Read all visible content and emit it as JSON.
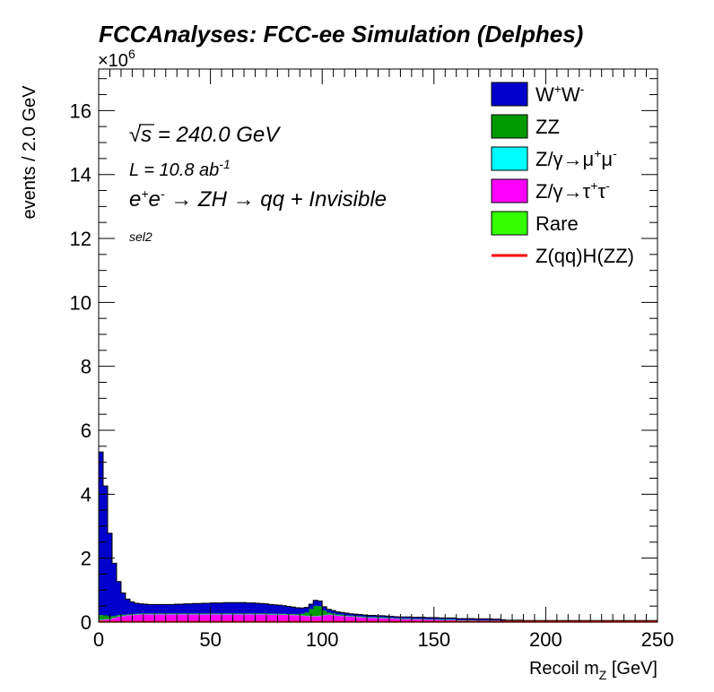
{
  "chart_data": {
    "type": "area",
    "stacked": true,
    "histogram": true,
    "title": "FCCAnalyses: FCC-ee Simulation (Delphes)",
    "xlabel_main": "Recoil m",
    "xlabel_sub": "Z",
    "xlabel_unit": " [GeV]",
    "ylabel": "events / 2.0 GeV",
    "y_multiplier": "×10",
    "y_multiplier_exp": "6",
    "xlim": [
      0,
      250
    ],
    "ylim": [
      0,
      17.3
    ],
    "x_ticks": [
      "0",
      "50",
      "100",
      "150",
      "200",
      "250"
    ],
    "y_ticks": [
      "0",
      "2",
      "4",
      "6",
      "8",
      "10",
      "12",
      "14",
      "16"
    ],
    "grid": false,
    "legend_position": "top-right",
    "annotations": {
      "sqrt_s_pre": "√",
      "sqrt_s_var": "s",
      "sqrt_s_post": " = 240.0 GeV",
      "lumi_pre": "L = 10.8 ab",
      "lumi_exp": "-1",
      "process_e1": "e",
      "process_e1_sup": "+",
      "process_e2": "e",
      "process_e2_sup": "-",
      "process_rest": " → ZH → qq + Invisible",
      "selection": "sel2"
    },
    "series": [
      {
        "name": "Rare",
        "color": "#33ff00",
        "values": [
          0.04,
          0.04,
          0.03,
          0.03,
          0.03,
          0.03,
          0.03,
          0.03,
          0.03,
          0.03,
          0.03,
          0.03,
          0.03,
          0.03,
          0.03,
          0.03,
          0.03,
          0.03,
          0.03,
          0.03,
          0.03,
          0.03,
          0.03,
          0.03,
          0.03,
          0.03,
          0.03,
          0.03,
          0.03,
          0.03,
          0.03,
          0.03,
          0.03,
          0.03,
          0.03,
          0.03,
          0.03,
          0.03,
          0.03,
          0.03,
          0.03,
          0.03,
          0.03,
          0.03,
          0.03,
          0.03,
          0.03,
          0.03,
          0.03,
          0.03,
          0.03,
          0.03,
          0.03,
          0.03,
          0.03,
          0.03,
          0.03,
          0.03,
          0.03,
          0.03,
          0.03,
          0.03,
          0.03,
          0.03,
          0.03,
          0.03,
          0.02,
          0.02,
          0.02,
          0.02,
          0.02,
          0.02,
          0.02,
          0.02,
          0.02,
          0.02,
          0.02,
          0.02,
          0.02,
          0.02,
          0.01,
          0.01,
          0.01,
          0.01,
          0.01,
          0.01,
          0.01,
          0.01,
          0.01,
          0.01,
          0.01,
          0.01,
          0.01,
          0.01,
          0.01,
          0.01,
          0.01,
          0.01,
          0.01,
          0.01,
          0.01,
          0.01,
          0.01,
          0.01,
          0.01,
          0.01,
          0.01,
          0.01,
          0.01,
          0.01,
          0.01,
          0.01,
          0.01,
          0.01,
          0.01,
          0.01,
          0.01,
          0.01,
          0.01,
          0.01,
          0.01,
          0.01,
          0.01,
          0.01,
          0.01
        ]
      },
      {
        "name": "Z/γ→τ⁺τ⁻",
        "color": "#ff00ff",
        "values": [
          0.02,
          0.04,
          0.06,
          0.1,
          0.14,
          0.16,
          0.18,
          0.19,
          0.2,
          0.21,
          0.21,
          0.21,
          0.21,
          0.21,
          0.21,
          0.21,
          0.21,
          0.21,
          0.21,
          0.21,
          0.21,
          0.21,
          0.21,
          0.21,
          0.21,
          0.21,
          0.21,
          0.21,
          0.21,
          0.21,
          0.21,
          0.21,
          0.21,
          0.21,
          0.21,
          0.21,
          0.21,
          0.21,
          0.2,
          0.2,
          0.2,
          0.2,
          0.19,
          0.19,
          0.18,
          0.17,
          0.16,
          0.15,
          0.15,
          0.16,
          0.18,
          0.2,
          0.19,
          0.17,
          0.16,
          0.15,
          0.14,
          0.13,
          0.12,
          0.11,
          0.1,
          0.1,
          0.09,
          0.09,
          0.08,
          0.08,
          0.08,
          0.07,
          0.07,
          0.07,
          0.06,
          0.06,
          0.06,
          0.05,
          0.05,
          0.05,
          0.04,
          0.04,
          0.04,
          0.04,
          0.03,
          0.03,
          0.03,
          0.03,
          0.02,
          0.02,
          0.02,
          0.02,
          0.02,
          0.02,
          0.01,
          0.01,
          0.01,
          0.01,
          0.01,
          0.01,
          0.01,
          0.01,
          0.01,
          0.01,
          0.01,
          0.01,
          0.01,
          0.01,
          0.01,
          0.01,
          0.01,
          0.01,
          0.01,
          0.01,
          0.01,
          0.01,
          0.01,
          0.01,
          0.01,
          0.01,
          0.01,
          0.01,
          0.01,
          0.01,
          0.01,
          0.01,
          0.01,
          0.01,
          0.01
        ]
      },
      {
        "name": "Z/γ→μ⁺μ⁻",
        "color": "#00ffff",
        "values": [
          0.01,
          0.01,
          0.01,
          0.01,
          0.01,
          0.01,
          0.01,
          0.01,
          0.01,
          0.01,
          0.01,
          0.01,
          0.01,
          0.01,
          0.01,
          0.01,
          0.01,
          0.01,
          0.01,
          0.01,
          0.01,
          0.01,
          0.01,
          0.01,
          0.01,
          0.01,
          0.01,
          0.01,
          0.01,
          0.01,
          0.01,
          0.01,
          0.01,
          0.01,
          0.01,
          0.01,
          0.01,
          0.01,
          0.01,
          0.01,
          0.01,
          0.01,
          0.01,
          0.01,
          0.01,
          0.01,
          0.01,
          0.01,
          0.01,
          0.01,
          0.01,
          0.01,
          0.01,
          0.01,
          0.01,
          0.01,
          0.01,
          0.01,
          0.01,
          0.01,
          0.01,
          0.01,
          0.01,
          0.01,
          0.01,
          0.01,
          0.01,
          0.01,
          0.01,
          0.01,
          0.01,
          0.01,
          0.01,
          0.01,
          0.01,
          0.01,
          0.01,
          0.01,
          0.01,
          0.01,
          0.01,
          0.01,
          0.01,
          0.01,
          0.01,
          0.01,
          0.01,
          0.01,
          0.01,
          0.01,
          0.01,
          0.01,
          0.01,
          0.01,
          0.01,
          0.01,
          0.01,
          0.01,
          0.01,
          0.01,
          0.01,
          0.01,
          0.01,
          0.01,
          0.01,
          0.01,
          0.01,
          0.01,
          0.01,
          0.01,
          0.01,
          0.01,
          0.01,
          0.01,
          0.01,
          0.01,
          0.01,
          0.01,
          0.01,
          0.01,
          0.01,
          0.01,
          0.01,
          0.01,
          0.01
        ]
      },
      {
        "name": "ZZ",
        "color": "#009900",
        "values": [
          0.15,
          0.12,
          0.08,
          0.05,
          0.04,
          0.03,
          0.02,
          0.02,
          0.02,
          0.02,
          0.02,
          0.02,
          0.02,
          0.02,
          0.02,
          0.02,
          0.02,
          0.02,
          0.02,
          0.02,
          0.02,
          0.02,
          0.02,
          0.02,
          0.02,
          0.02,
          0.02,
          0.02,
          0.02,
          0.02,
          0.02,
          0.02,
          0.02,
          0.02,
          0.02,
          0.02,
          0.02,
          0.02,
          0.02,
          0.02,
          0.02,
          0.02,
          0.02,
          0.02,
          0.03,
          0.05,
          0.1,
          0.22,
          0.32,
          0.3,
          0.14,
          0.06,
          0.04,
          0.03,
          0.03,
          0.02,
          0.02,
          0.02,
          0.02,
          0.02,
          0.02,
          0.02,
          0.02,
          0.02,
          0.02,
          0.01,
          0.01,
          0.01,
          0.01,
          0.01,
          0.01,
          0.01,
          0.01,
          0.01,
          0.01,
          0.01,
          0.01,
          0.01,
          0.01,
          0.01,
          0.01,
          0.01,
          0.01,
          0.01,
          0.01,
          0.01,
          0.01,
          0.01,
          0.01,
          0.01,
          0.01,
          0.01,
          0.01,
          0.01,
          0.01,
          0.01,
          0.01,
          0.01,
          0.01,
          0.01,
          0.01,
          0.01,
          0.01,
          0.01,
          0.01,
          0.01,
          0.01,
          0.01,
          0.01,
          0.01,
          0.01,
          0.01,
          0.01,
          0.01,
          0.01,
          0.01,
          0.01,
          0.01,
          0.01,
          0.01,
          0.01,
          0.01,
          0.01,
          0.01,
          0.01
        ]
      },
      {
        "name": "W⁺W⁻",
        "color": "#0000cc",
        "values": [
          5.1,
          4.05,
          2.6,
          1.65,
          1.05,
          0.68,
          0.48,
          0.38,
          0.33,
          0.3,
          0.29,
          0.28,
          0.28,
          0.28,
          0.28,
          0.28,
          0.28,
          0.29,
          0.29,
          0.3,
          0.3,
          0.31,
          0.31,
          0.32,
          0.32,
          0.33,
          0.33,
          0.33,
          0.34,
          0.34,
          0.34,
          0.34,
          0.34,
          0.33,
          0.33,
          0.32,
          0.31,
          0.3,
          0.29,
          0.28,
          0.27,
          0.25,
          0.24,
          0.22,
          0.2,
          0.18,
          0.16,
          0.15,
          0.17,
          0.16,
          0.12,
          0.1,
          0.09,
          0.08,
          0.07,
          0.07,
          0.06,
          0.06,
          0.06,
          0.05,
          0.05,
          0.05,
          0.05,
          0.05,
          0.05,
          0.05,
          0.05,
          0.05,
          0.05,
          0.05,
          0.05,
          0.05,
          0.05,
          0.05,
          0.05,
          0.05,
          0.05,
          0.05,
          0.05,
          0.05,
          0.05,
          0.05,
          0.05,
          0.05,
          0.05,
          0.05,
          0.05,
          0.05,
          0.04,
          0.04,
          0.03,
          0.02,
          0.02,
          0.02,
          0.02,
          0.01,
          0.01,
          0.01,
          0.01,
          0.01,
          0.01,
          0.01,
          0.01,
          0.01,
          0.01,
          0.01,
          0.01,
          0.01,
          0.01,
          0.01,
          0.01,
          0.01,
          0.01,
          0.01,
          0.01,
          0.01,
          0.01,
          0.01,
          0.01,
          0.01,
          0.01,
          0.01,
          0.01,
          0.01,
          0.01
        ]
      },
      {
        "name": "Z(qq)H(ZZ)",
        "color": "#ff0000",
        "line": true,
        "values": [
          0.01,
          0.01,
          0.01,
          0.01,
          0.01,
          0.01,
          0.01,
          0.01,
          0.01,
          0.01,
          0.01,
          0.01,
          0.01,
          0.01,
          0.01,
          0.01,
          0.01,
          0.01,
          0.01,
          0.01,
          0.01,
          0.01,
          0.01,
          0.01,
          0.01,
          0.01,
          0.01,
          0.01,
          0.01,
          0.01,
          0.01,
          0.01,
          0.01,
          0.01,
          0.01,
          0.01,
          0.01,
          0.01,
          0.01,
          0.01,
          0.01,
          0.01,
          0.01,
          0.01,
          0.01,
          0.01,
          0.01,
          0.01,
          0.01,
          0.01,
          0.01,
          0.01,
          0.01,
          0.01,
          0.01,
          0.01,
          0.01,
          0.01,
          0.01,
          0.01,
          0.01,
          0.01,
          0.01,
          0.01,
          0.01,
          0.01,
          0.01,
          0.01,
          0.01,
          0.01,
          0.01,
          0.01,
          0.01,
          0.01,
          0.01,
          0.01,
          0.01,
          0.01,
          0.01,
          0.01,
          0.01,
          0.01,
          0.01,
          0.01,
          0.01,
          0.01,
          0.01,
          0.01,
          0.01,
          0.01,
          0.01,
          0.01,
          0.01,
          0.01,
          0.01,
          0.01,
          0.01,
          0.01,
          0.01,
          0.01,
          0.01,
          0.01,
          0.01,
          0.01,
          0.01,
          0.01,
          0.01,
          0.01,
          0.01,
          0.01,
          0.01,
          0.01,
          0.01,
          0.01,
          0.01,
          0.01,
          0.01,
          0.01,
          0.01,
          0.01,
          0.01,
          0.01,
          0.01,
          0.01,
          0.01
        ]
      }
    ],
    "legend": [
      {
        "base": "W",
        "sup1": "+",
        "mid": "W",
        "sup2": "-",
        "color": "#0000cc",
        "kind": "fill"
      },
      {
        "base": "ZZ",
        "color": "#009900",
        "kind": "fill"
      },
      {
        "base": "Z/γ→μ",
        "sup1": "+",
        "mid": "μ",
        "sup2": "-",
        "color": "#00ffff",
        "kind": "fill"
      },
      {
        "base": "Z/γ→τ",
        "sup1": "+",
        "mid": "τ",
        "sup2": "-",
        "color": "#ff00ff",
        "kind": "fill"
      },
      {
        "base": "Rare",
        "color": "#33ff00",
        "kind": "fill"
      },
      {
        "base": "Z(qq)H(ZZ)",
        "color": "#ff0000",
        "kind": "line"
      }
    ]
  }
}
